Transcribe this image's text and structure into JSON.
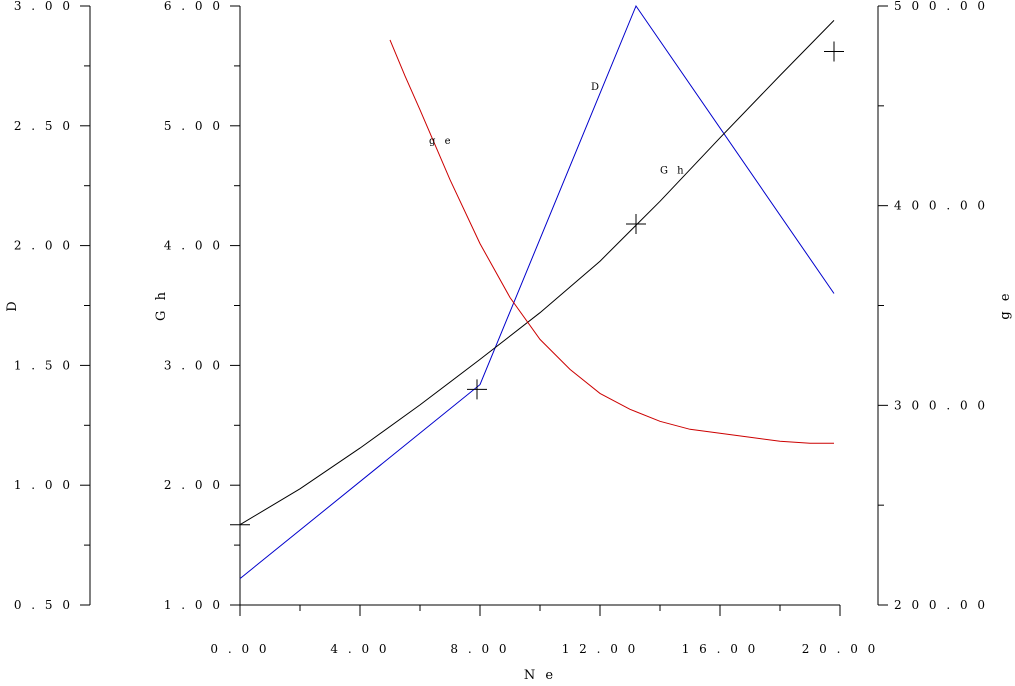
{
  "chart_data": {
    "type": "line",
    "title": "",
    "colors": {
      "D": "#0000cc",
      "Gh": "#000000",
      "ge": "#cc0000",
      "axis": "#000000"
    },
    "x_axis": {
      "label": "N e",
      "min": 0,
      "max": 20,
      "ticks": [
        0,
        4,
        8,
        12,
        16,
        20
      ],
      "tick_labels": [
        "0 . 0 0",
        "4 . 0 0",
        "8 . 0 0",
        "1 2 . 0 0",
        "1 6 . 0 0",
        "2 0 . 0 0"
      ],
      "minor_ticks": [
        2,
        6,
        10,
        14,
        18
      ]
    },
    "y_axes": {
      "D": {
        "label": "D",
        "side": "far-left",
        "min": 0.5,
        "max": 3.0,
        "ticks": [
          0.5,
          1.0,
          1.5,
          2.0,
          2.5,
          3.0
        ],
        "tick_labels": [
          "0 . 5 0",
          "1 . 0 0",
          "1 . 5 0",
          "2 . 0 0",
          "2 . 5 0",
          "3 . 0 0"
        ],
        "minor_ticks": [
          0.75,
          1.25,
          1.75,
          2.25,
          2.75
        ]
      },
      "Gh": {
        "label": "G h",
        "side": "left",
        "min": 1.0,
        "max": 6.0,
        "ticks": [
          1,
          2,
          3,
          4,
          5,
          6
        ],
        "tick_labels": [
          "1 . 0 0",
          "2 . 0 0",
          "3 . 0 0",
          "4 . 0 0",
          "5 . 0 0",
          "6 . 0 0"
        ],
        "minor_ticks": [
          1.5,
          2.5,
          3.5,
          4.5,
          5.5
        ]
      },
      "ge": {
        "label": "g e",
        "side": "right",
        "min": 200,
        "max": 500,
        "ticks": [
          200,
          300,
          400,
          500
        ],
        "tick_labels": [
          "2 0 0 . 0 0",
          "3 0 0 . 0 0",
          "4 0 0 . 0 0",
          "5 0 0 . 0 0"
        ],
        "minor_ticks": [
          250,
          350,
          450
        ]
      }
    },
    "series": [
      {
        "name": "D",
        "label": "D",
        "axis": "D",
        "color": "#0000cc",
        "x": [
          0,
          8,
          13.2,
          19.8
        ],
        "y": [
          0.61,
          1.42,
          3.0,
          1.8
        ],
        "label_at": [
          11.7,
          2.65
        ]
      },
      {
        "name": "Gh",
        "label": "G h",
        "axis": "Gh",
        "color": "#000000",
        "x": [
          0,
          2,
          4,
          6,
          8,
          10,
          12,
          14,
          16,
          18,
          19.8
        ],
        "y": [
          1.67,
          1.97,
          2.31,
          2.67,
          3.05,
          3.44,
          3.87,
          4.37,
          4.9,
          5.42,
          5.88
        ],
        "markers": [
          [
            0,
            1.67
          ],
          [
            7.9,
            2.8
          ],
          [
            13.2,
            4.18
          ],
          [
            19.8,
            5.62
          ]
        ],
        "label_at": [
          14.0,
          4.6
        ]
      },
      {
        "name": "ge",
        "label": "g e",
        "axis": "ge",
        "color": "#cc0000",
        "x": [
          5,
          5.5,
          6,
          7,
          8,
          9,
          10,
          11,
          12,
          13,
          14,
          15,
          16,
          17,
          18,
          19,
          19.8
        ],
        "y": [
          483,
          465,
          448,
          413,
          381,
          354,
          333,
          318,
          306,
          298,
          292,
          288,
          286,
          284,
          282,
          281,
          281
        ],
        "label_at": [
          6.3,
          431
        ]
      }
    ]
  }
}
